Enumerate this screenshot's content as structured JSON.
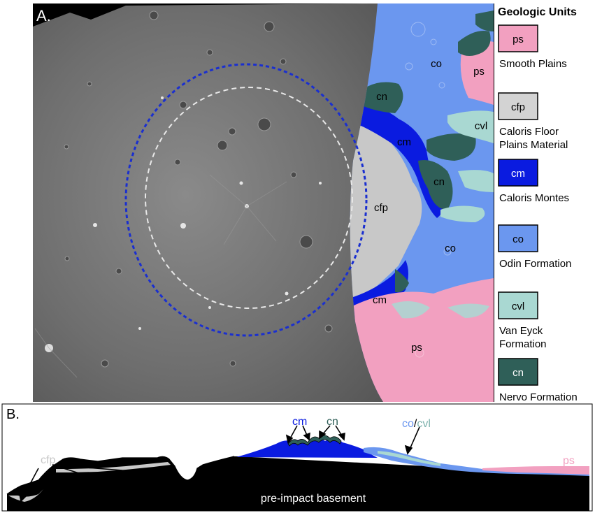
{
  "panel_a": {
    "label": "A.",
    "map_labels": {
      "co_top": "co",
      "ps_top": "ps",
      "cn_top": "cn",
      "cvl": "cvl",
      "cm_mid": "cm",
      "cn_mid": "cn",
      "cfp": "cfp",
      "co_mid": "co",
      "cm_low": "cm",
      "ps_bottom": "ps"
    },
    "legend": {
      "title": "Geologic Units",
      "items": [
        {
          "code": "ps",
          "name_lines": [
            "Smooth Plains"
          ],
          "color": "#f2a0c0",
          "code_color": "#000000"
        },
        {
          "code": "cfp",
          "name_lines": [
            "Caloris Floor",
            "Plains Material"
          ],
          "color": "#d3d3d3",
          "code_color": "#000000"
        },
        {
          "code": "cm",
          "name_lines": [
            "Caloris Montes"
          ],
          "color": "#0a1be0",
          "code_color": "#ffffff"
        },
        {
          "code": "co",
          "name_lines": [
            "Odin Formation"
          ],
          "color": "#6b97ef",
          "code_color": "#000000"
        },
        {
          "code": "cvl",
          "name_lines": [
            "Van Eyck",
            "Formation"
          ],
          "color": "#a9d8d2",
          "code_color": "#000000"
        },
        {
          "code": "cn",
          "name_lines": [
            "Nervo Formation"
          ],
          "color": "#2f5f58",
          "code_color": "#ffffff"
        }
      ]
    }
  },
  "panel_b": {
    "label": "B.",
    "labels": {
      "cfp": "cfp",
      "cm": "cm",
      "cn": "cn",
      "co": "co",
      "slash": "/",
      "cvl": "cvl",
      "ps": "ps",
      "basement": "pre-impact basement"
    }
  },
  "colors": {
    "ps": "#f2a0c0",
    "cfp": "#c8c8c8",
    "cm": "#0a1be0",
    "co": "#6b97ef",
    "cvl": "#a9d8d2",
    "cn": "#2f5f58",
    "ring_outer": "#1a2fd0",
    "ring_inner": "#e8e8e8"
  }
}
